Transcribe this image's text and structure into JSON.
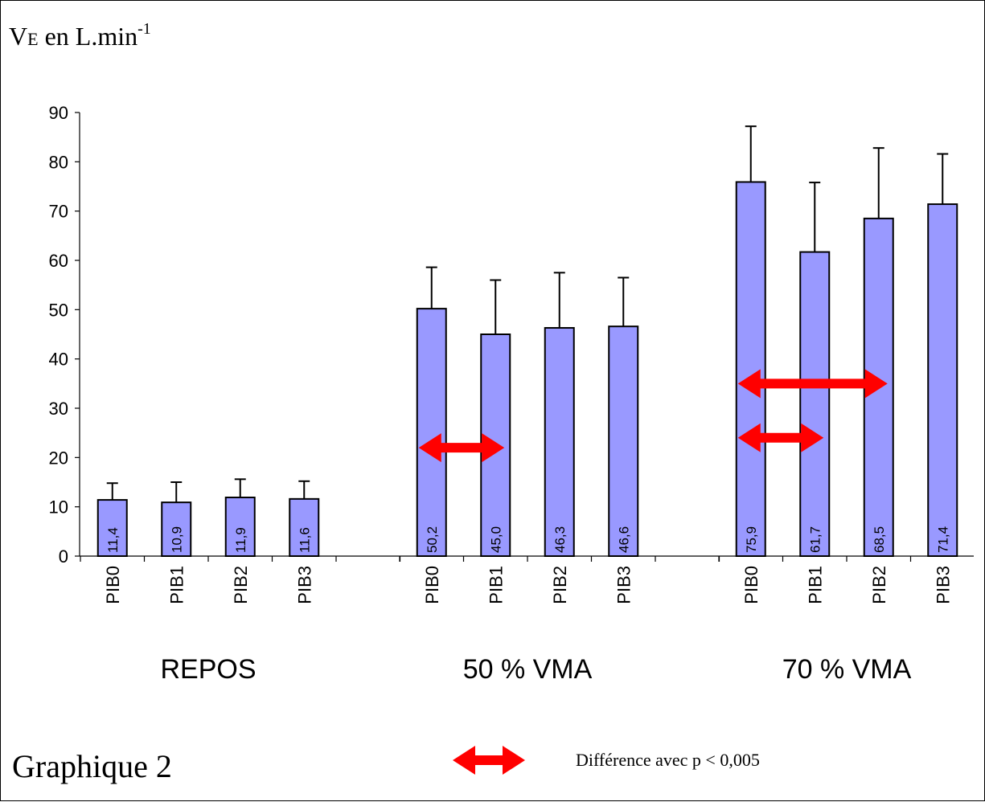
{
  "chart_data": {
    "type": "bar",
    "ylabel": {
      "main": "V",
      "sub": "E",
      "unit": " en L.min",
      "exponent": "-1"
    },
    "ylim": [
      0,
      90
    ],
    "yticks": [
      "0",
      "10",
      "20",
      "30",
      "40",
      "50",
      "60",
      "70",
      "80",
      "90"
    ],
    "grid": false,
    "bar_color": "#9999ff",
    "error_bar_color": "#000000",
    "arrow_color": "#ff0000",
    "groups": [
      {
        "label": "REPOS",
        "categories": [
          "PIB0",
          "PIB1",
          "PIB2",
          "PIB3"
        ],
        "values": [
          11.4,
          10.9,
          11.9,
          11.6
        ],
        "value_labels": [
          "11,4",
          "10,9",
          "11,9",
          "11,6"
        ],
        "error_upper": [
          14.8,
          15.0,
          15.6,
          15.2
        ]
      },
      {
        "label": "50 % VMA",
        "categories": [
          "PIB0",
          "PIB1",
          "PIB2",
          "PIB3"
        ],
        "values": [
          50.2,
          45.0,
          46.3,
          46.6
        ],
        "value_labels": [
          "50,2",
          "45,0",
          "46,3",
          "46,6"
        ],
        "error_upper": [
          58.6,
          56.0,
          57.5,
          56.5
        ]
      },
      {
        "label": "70 % VMA",
        "categories": [
          "PIB0",
          "PIB1",
          "PIB2",
          "PIB3"
        ],
        "values": [
          75.9,
          61.7,
          68.5,
          71.4
        ],
        "value_labels": [
          "75,9",
          "61,7",
          "68,5",
          "71,4"
        ],
        "error_upper": [
          87.2,
          75.8,
          82.8,
          81.6
        ]
      }
    ],
    "significance_arrows": [
      {
        "group": 1,
        "from": "PIB0",
        "to": "PIB1",
        "y": 22
      },
      {
        "group": 2,
        "from": "PIB0",
        "to": "PIB2",
        "y": 35
      },
      {
        "group": 2,
        "from": "PIB0",
        "to": "PIB1",
        "y": 24
      }
    ],
    "caption": "Graphique 2",
    "legend": {
      "marker": "double-arrow",
      "text": "Différence avec p < 0,005",
      "placement": "bottom-right"
    }
  }
}
